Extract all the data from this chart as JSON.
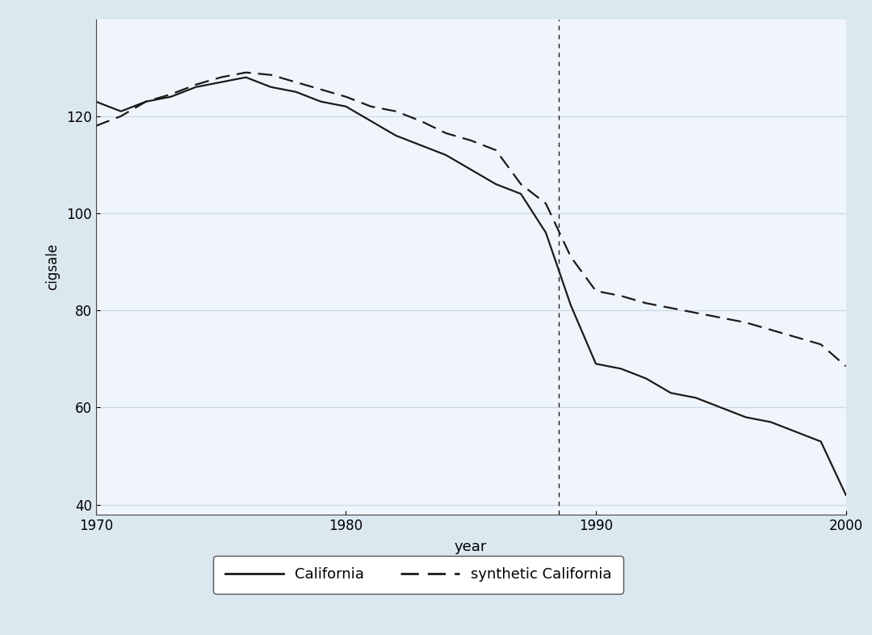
{
  "california": {
    "years": [
      1970,
      1971,
      1972,
      1973,
      1974,
      1975,
      1976,
      1977,
      1978,
      1979,
      1980,
      1981,
      1982,
      1983,
      1984,
      1985,
      1986,
      1987,
      1988,
      1989,
      1990,
      1991,
      1992,
      1993,
      1994,
      1995,
      1996,
      1997,
      1998,
      1999,
      2000
    ],
    "values": [
      123.0,
      121.0,
      123.0,
      124.0,
      126.0,
      127.0,
      128.0,
      126.0,
      125.0,
      123.0,
      122.0,
      119.0,
      116.0,
      114.0,
      112.0,
      109.0,
      106.0,
      104.0,
      96.0,
      81.0,
      69.0,
      68.0,
      66.0,
      63.0,
      62.0,
      60.0,
      58.0,
      57.0,
      55.0,
      53.0,
      42.0
    ]
  },
  "synthetic": {
    "years": [
      1970,
      1971,
      1972,
      1973,
      1974,
      1975,
      1976,
      1977,
      1978,
      1979,
      1980,
      1981,
      1982,
      1983,
      1984,
      1985,
      1986,
      1987,
      1988,
      1989,
      1990,
      1991,
      1992,
      1993,
      1994,
      1995,
      1996,
      1997,
      1998,
      1999,
      2000
    ],
    "values": [
      118.0,
      120.0,
      123.0,
      124.5,
      126.5,
      128.0,
      129.0,
      128.5,
      127.0,
      125.5,
      124.0,
      122.0,
      121.0,
      119.0,
      116.5,
      115.0,
      113.0,
      106.0,
      102.0,
      91.0,
      84.0,
      83.0,
      81.5,
      80.5,
      79.5,
      78.5,
      77.5,
      76.0,
      74.5,
      73.0,
      68.5
    ]
  },
  "vline_x": 1988.5,
  "xlim": [
    1970,
    2000
  ],
  "ylim": [
    38,
    140
  ],
  "yticks": [
    40,
    60,
    80,
    100,
    120
  ],
  "xticks": [
    1970,
    1980,
    1990,
    2000
  ],
  "xlabel": "year",
  "ylabel": "cigsale",
  "outer_bg_color": "#dce8f0",
  "plot_bg_color": "#f0f5fb",
  "line_color": "#1a1a1a",
  "grid_color": "#c8d8e8",
  "legend_labels": [
    "California",
    "synthetic California"
  ],
  "figure_size": [
    10.8,
    7.86
  ],
  "dpi": 100
}
